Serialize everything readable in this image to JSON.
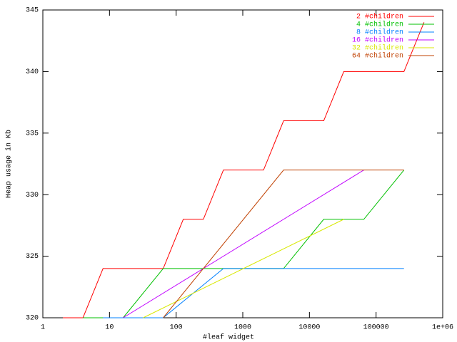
{
  "chart_data": {
    "type": "line",
    "xlabel": "#leaf widget",
    "ylabel": "Heap usage in Kb",
    "xscale": "log",
    "xlim": [
      1,
      1000000
    ],
    "ylim": [
      320,
      345
    ],
    "xticks": [
      1,
      10,
      100,
      1000,
      10000,
      100000,
      {
        "value": 1000000,
        "label": "1e+06"
      }
    ],
    "yticks": [
      320,
      325,
      330,
      335,
      340,
      345
    ],
    "legend": "top-right",
    "series": [
      {
        "name": "2 #children",
        "color": "#ff0000",
        "x": [
          2,
          4,
          8,
          16,
          32,
          64,
          128,
          256,
          512,
          1024,
          2048,
          4096,
          8192,
          16384,
          32768,
          65536,
          131072,
          262144,
          524288
        ],
        "values": [
          320,
          320,
          324,
          324,
          324,
          324,
          328,
          328,
          332,
          332,
          332,
          336,
          336,
          336,
          340,
          340,
          340,
          340,
          344
        ]
      },
      {
        "name": "4 #children",
        "color": "#00c000",
        "x": [
          4,
          16,
          64,
          256,
          1024,
          4096,
          16384,
          65536,
          262144
        ],
        "values": [
          320,
          320,
          324,
          324,
          324,
          324,
          328,
          328,
          332
        ]
      },
      {
        "name": "8 #children",
        "color": "#0080ff",
        "x": [
          8,
          64,
          512,
          4096,
          32768,
          262144
        ],
        "values": [
          320,
          320,
          324,
          324,
          324,
          324
        ]
      },
      {
        "name": "16 #children",
        "color": "#c000ff",
        "x": [
          16,
          256,
          4096,
          65536
        ],
        "values": [
          320,
          324,
          328,
          332
        ]
      },
      {
        "name": "32 #children",
        "color": "#d8e800",
        "x": [
          32,
          1024,
          32768
        ],
        "values": [
          320,
          324,
          328
        ]
      },
      {
        "name": "64 #children",
        "color": "#c04000",
        "x": [
          64,
          4096,
          262144
        ],
        "values": [
          320,
          332,
          332
        ]
      }
    ]
  }
}
